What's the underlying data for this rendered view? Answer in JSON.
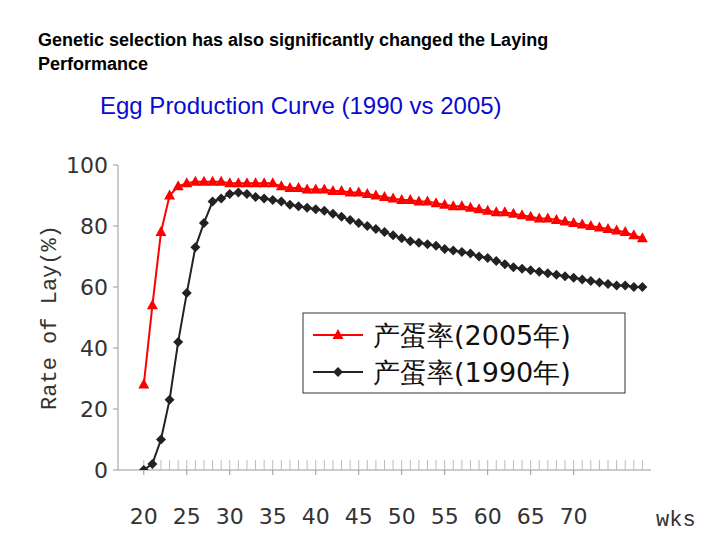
{
  "chart_data": {
    "type": "line",
    "title": "Genetic selection has also significantly changed the Laying Performance",
    "subtitle": "Egg Production Curve (1990 vs 2005)",
    "x_label": "wks",
    "y_label": "Rate of Lay(%)",
    "x": [
      20,
      21,
      22,
      23,
      24,
      25,
      26,
      27,
      28,
      29,
      30,
      31,
      32,
      33,
      34,
      35,
      36,
      37,
      38,
      39,
      40,
      41,
      42,
      43,
      44,
      45,
      46,
      47,
      48,
      49,
      50,
      51,
      52,
      53,
      54,
      55,
      56,
      57,
      58,
      59,
      60,
      61,
      62,
      63,
      64,
      65,
      66,
      67,
      68,
      69,
      70,
      71,
      72,
      73,
      74,
      75,
      76,
      77,
      78
    ],
    "series": [
      {
        "name": "产蛋率(2005年)",
        "color": "#ff0000",
        "marker": "triangle",
        "values": [
          28,
          54,
          78,
          90,
          93,
          94,
          94.5,
          94.5,
          94.5,
          94.5,
          94,
          94,
          94,
          94,
          94,
          94,
          93,
          92.5,
          92.5,
          92,
          92,
          92,
          91.5,
          91.5,
          91,
          91,
          90.5,
          90,
          89.5,
          89,
          88.5,
          88.5,
          88,
          88,
          87.5,
          87,
          86.5,
          86.5,
          86,
          85.5,
          85,
          84.5,
          84.5,
          84,
          83.5,
          83,
          82.5,
          82.5,
          82,
          81.5,
          81,
          80.5,
          80,
          79.5,
          79,
          78.5,
          78,
          77,
          76
        ]
      },
      {
        "name": "产蛋率(1990年)",
        "color": "#222222",
        "marker": "diamond",
        "values": [
          0,
          2,
          10,
          23,
          42,
          58,
          73,
          81,
          88,
          89,
          90.5,
          91,
          90.5,
          89.5,
          89,
          88.5,
          88,
          87,
          86.5,
          86,
          85.5,
          85,
          84,
          83,
          82,
          81,
          80,
          79,
          78,
          77,
          76,
          75,
          74.5,
          74,
          73.5,
          72.5,
          72,
          71.5,
          71,
          70,
          69.5,
          68.5,
          67.5,
          66.5,
          66,
          65.5,
          65,
          64.5,
          64,
          63.5,
          63,
          62.5,
          62,
          61.5,
          61,
          60.5,
          60.5,
          60,
          60
        ]
      }
    ],
    "xlim": [
      17,
      79
    ],
    "xticks": [
      20,
      25,
      30,
      35,
      40,
      45,
      50,
      55,
      60,
      65,
      70
    ],
    "ylim": [
      0,
      100
    ],
    "yticks": [
      0,
      20,
      40,
      60,
      80,
      100
    ],
    "grid": false,
    "legend": "right"
  }
}
